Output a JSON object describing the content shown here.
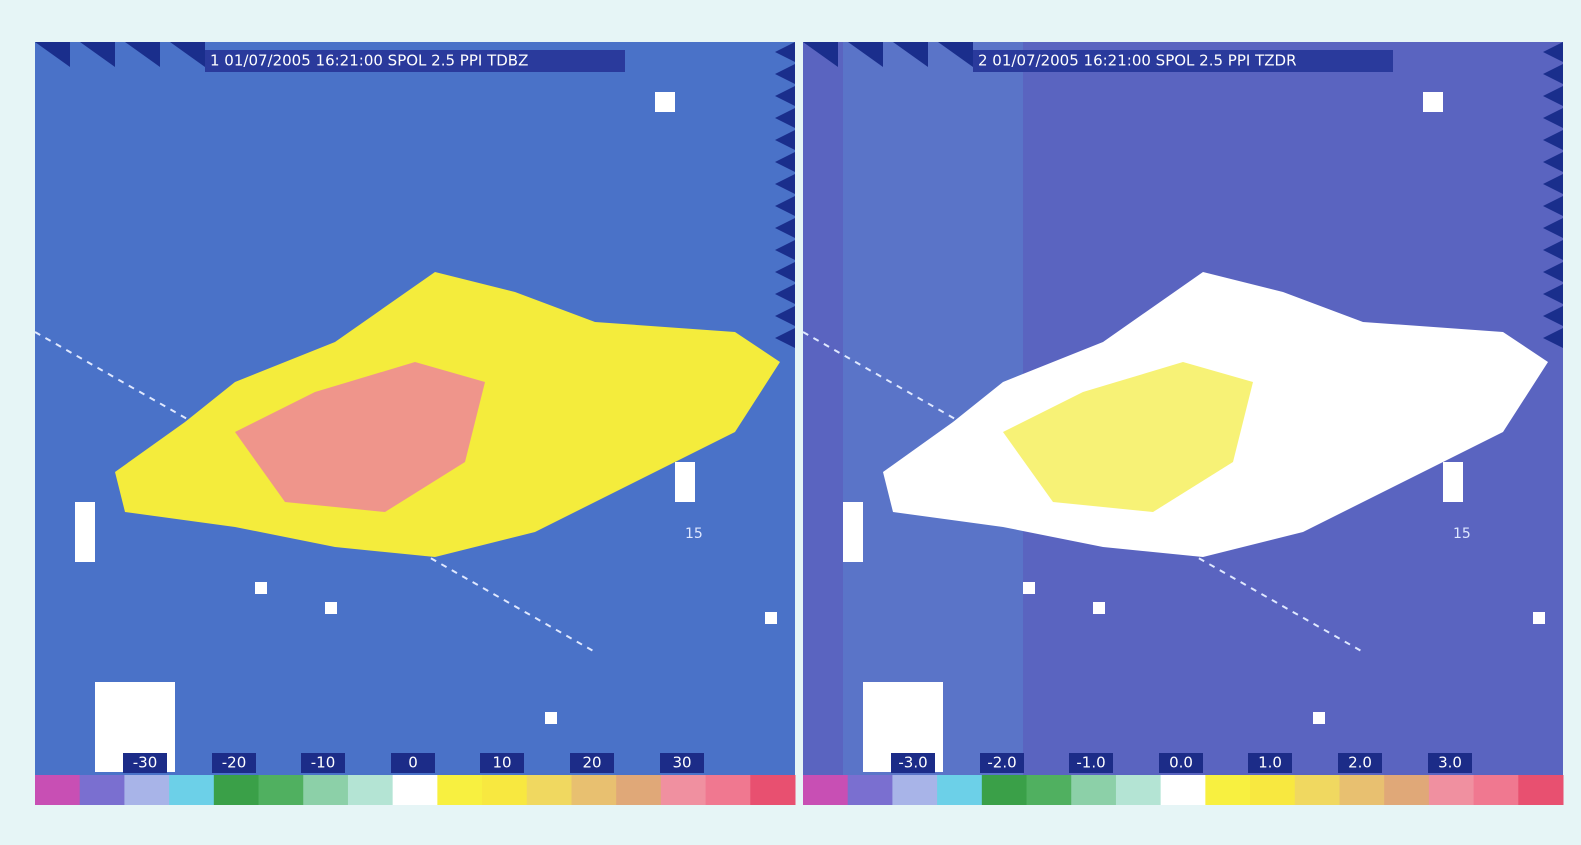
{
  "panels": [
    {
      "title": "1 01/07/2005 16:21:00 SPOL 2.5 PPI TDBZ",
      "range_label": "15",
      "colorbar_labels": [
        "-30",
        "-20",
        "-10",
        "0",
        "10",
        "20",
        "30"
      ]
    },
    {
      "title": "2 01/07/2005 16:21:00 SPOL 2.5 PPI TZDR",
      "range_label": "15",
      "colorbar_labels": [
        "-3.0",
        "-2.0",
        "-1.0",
        "0.0",
        "1.0",
        "2.0",
        "3.0"
      ]
    }
  ]
}
